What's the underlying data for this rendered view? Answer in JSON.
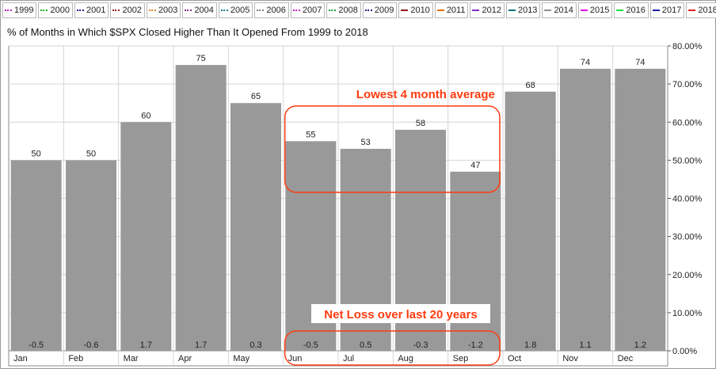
{
  "legend": {
    "items": [
      {
        "label": "1999",
        "color": "#c020c0",
        "style": "dotted"
      },
      {
        "label": "2000",
        "color": "#20b020",
        "style": "dotted"
      },
      {
        "label": "2001",
        "color": "#202090",
        "style": "dotted"
      },
      {
        "label": "2002",
        "color": "#a02020",
        "style": "dotted"
      },
      {
        "label": "2003",
        "color": "#e08020",
        "style": "dotted"
      },
      {
        "label": "2004",
        "color": "#803080",
        "style": "dotted"
      },
      {
        "label": "2005",
        "color": "#208090",
        "style": "dotted"
      },
      {
        "label": "2006",
        "color": "#808080",
        "style": "dotted"
      },
      {
        "label": "2007",
        "color": "#d020d0",
        "style": "dotted"
      },
      {
        "label": "2008",
        "color": "#20a040",
        "style": "dotted"
      },
      {
        "label": "2009",
        "color": "#202080",
        "style": "dotted"
      },
      {
        "label": "2010",
        "color": "#901818",
        "style": "solid"
      },
      {
        "label": "2011",
        "color": "#e07010",
        "style": "solid"
      },
      {
        "label": "2012",
        "color": "#8030c0",
        "style": "solid"
      },
      {
        "label": "2013",
        "color": "#107080",
        "style": "solid"
      },
      {
        "label": "2014",
        "color": "#909090",
        "style": "solid"
      },
      {
        "label": "2015",
        "color": "#e010e0",
        "style": "solid"
      },
      {
        "label": "2016",
        "color": "#20e040",
        "style": "solid"
      },
      {
        "label": "2017",
        "color": "#2020a0",
        "style": "solid"
      },
      {
        "label": "2018",
        "color": "#e02020",
        "style": "solid"
      }
    ]
  },
  "chart_data": {
    "type": "bar",
    "title": "% of Months in Which $SPX Closed Higher Than It Opened From 1999 to 2018",
    "categories": [
      "Jan",
      "Feb",
      "Mar",
      "Apr",
      "May",
      "Jun",
      "Jul",
      "Aug",
      "Sep",
      "Oct",
      "Nov",
      "Dec"
    ],
    "values": [
      50,
      50,
      60,
      75,
      65,
      55,
      53,
      58,
      47,
      68,
      74,
      74
    ],
    "avg_change": [
      "-0.5",
      "-0.6",
      "1.7",
      "1.7",
      "0.3",
      "-0.5",
      "0.5",
      "-0.3",
      "-1.2",
      "1.8",
      "1.1",
      "1.2"
    ],
    "ylim": [
      0,
      80
    ],
    "yticks": [
      "0.00%",
      "10.00%",
      "20.00%",
      "30.00%",
      "40.00%",
      "50.00%",
      "60.00%",
      "70.00%",
      "80.00%"
    ],
    "ytick_values": [
      0,
      10,
      20,
      30,
      40,
      50,
      60,
      70,
      80
    ],
    "y_axis_side": "right",
    "grid": true,
    "bar_color": "#999999",
    "annotations": [
      {
        "text": "Lowest 4 month average",
        "color": "#ff3b10",
        "categories": [
          "Jun",
          "Jul",
          "Aug",
          "Sep"
        ],
        "target": "bars"
      },
      {
        "text": "Net Loss over last 20 years",
        "color": "#ff3b10",
        "categories": [
          "Jun",
          "Jul",
          "Aug",
          "Sep"
        ],
        "target": "avg_change"
      }
    ]
  }
}
